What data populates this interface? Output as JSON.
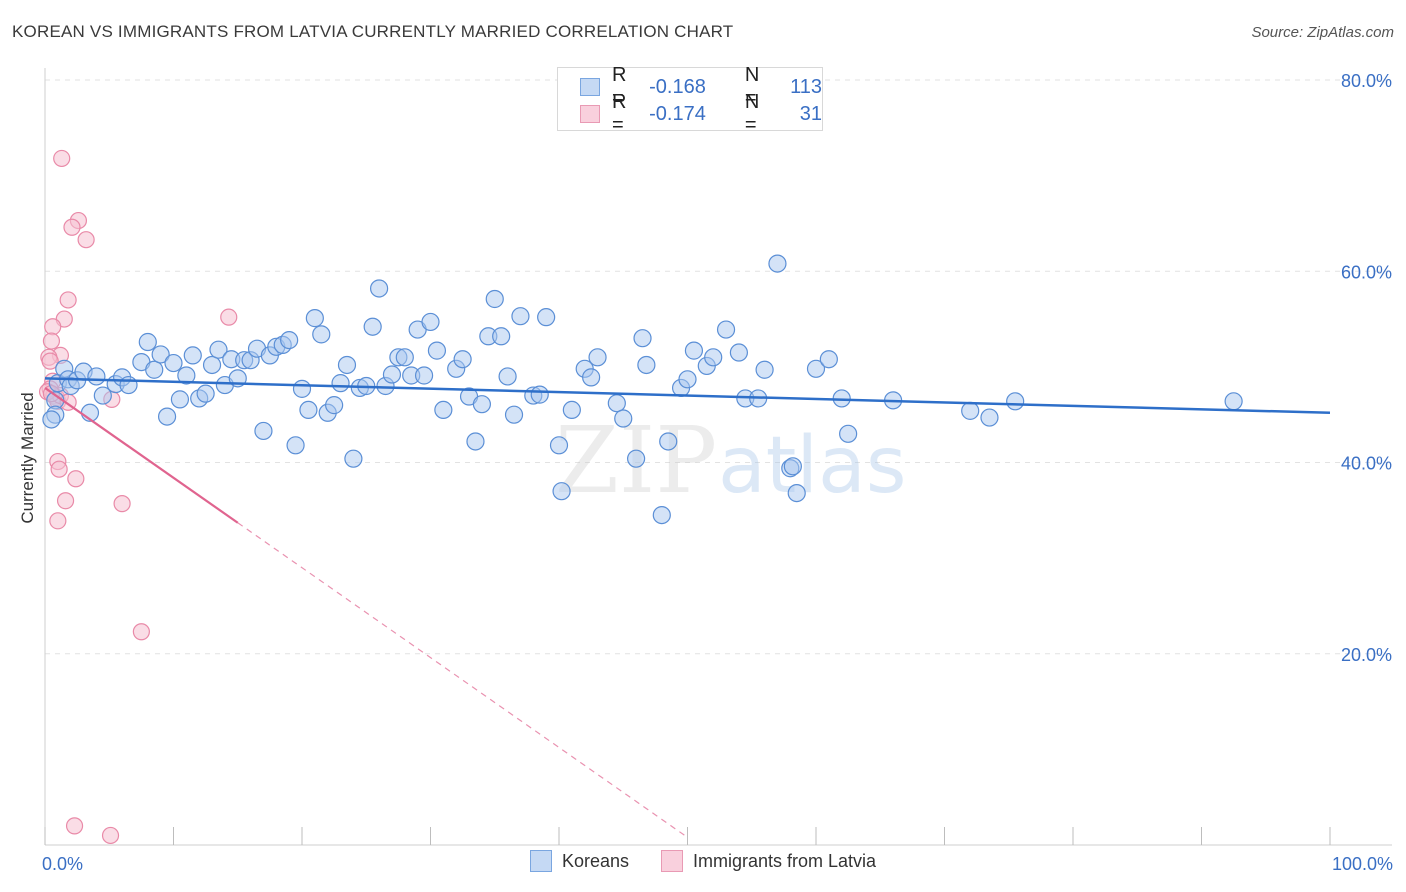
{
  "header": {
    "title": "KOREAN VS IMMIGRANTS FROM LATVIA CURRENTLY MARRIED CORRELATION CHART",
    "source": "Source: ZipAtlas.com"
  },
  "legend_top": {
    "rows": [
      {
        "r_label": "R =",
        "r_value": "-0.168",
        "n_label": "N =",
        "n_value": "113"
      },
      {
        "r_label": "R =",
        "r_value": "-0.174",
        "n_label": "N =",
        "n_value": "31"
      }
    ]
  },
  "legend_bottom": {
    "items": [
      "Koreans",
      "Immigrants from Latvia"
    ]
  },
  "watermark": {
    "zip": "ZIP",
    "atlas": "atlas"
  },
  "colors": {
    "blue_fill": "#aac8f0",
    "blue_stroke": "#5b8fd6",
    "blue_line": "#2e6fc9",
    "pink_fill": "#f6c1d1",
    "pink_stroke": "#e98aa8",
    "pink_line": "#e0648f",
    "tick_text": "#3a6fc4",
    "grid": "#e2e2e2"
  },
  "chart_data": {
    "type": "scatter",
    "title": "KOREAN VS IMMIGRANTS FROM LATVIA CURRENTLY MARRIED CORRELATION CHART",
    "xlabel": "",
    "ylabel": "Currently Married",
    "xlim": [
      0,
      100
    ],
    "ylim": [
      0,
      80
    ],
    "x_tick_labels": [
      "0.0%",
      "100.0%"
    ],
    "y_ticks": [
      20,
      40,
      60,
      80
    ],
    "y_tick_labels": [
      "20.0%",
      "40.0%",
      "60.0%",
      "80.0%"
    ],
    "grid": "dashed horizontal",
    "legend": "bottom-center",
    "series": [
      {
        "name": "Koreans",
        "color": "#5b8fd6",
        "trend": {
          "x": [
            0,
            100
          ],
          "y": [
            48.8,
            45.2
          ]
        },
        "points": [
          [
            0.8,
            46.5
          ],
          [
            0.8,
            45.0
          ],
          [
            1.0,
            48.3
          ],
          [
            1.5,
            49.8
          ],
          [
            1.8,
            48.7
          ],
          [
            2.0,
            48.0
          ],
          [
            2.5,
            48.6
          ],
          [
            3.0,
            49.5
          ],
          [
            3.5,
            45.2
          ],
          [
            4.0,
            49.0
          ],
          [
            4.5,
            47.0
          ],
          [
            5.5,
            48.2
          ],
          [
            6.0,
            48.9
          ],
          [
            6.5,
            48.1
          ],
          [
            7.5,
            50.5
          ],
          [
            8.0,
            52.6
          ],
          [
            8.5,
            49.7
          ],
          [
            9.0,
            51.3
          ],
          [
            9.5,
            44.8
          ],
          [
            10.0,
            50.4
          ],
          [
            10.5,
            46.6
          ],
          [
            11.0,
            49.1
          ],
          [
            11.5,
            51.2
          ],
          [
            12.0,
            46.7
          ],
          [
            12.5,
            47.2
          ],
          [
            13.0,
            50.2
          ],
          [
            13.5,
            51.8
          ],
          [
            14.0,
            48.1
          ],
          [
            14.5,
            50.8
          ],
          [
            15.0,
            48.8
          ],
          [
            15.5,
            50.7
          ],
          [
            16.0,
            50.7
          ],
          [
            16.5,
            51.9
          ],
          [
            17.0,
            43.3
          ],
          [
            17.5,
            51.2
          ],
          [
            18.0,
            52.1
          ],
          [
            18.5,
            52.3
          ],
          [
            19.0,
            52.8
          ],
          [
            19.5,
            41.8
          ],
          [
            20.0,
            47.7
          ],
          [
            20.5,
            45.5
          ],
          [
            21.0,
            55.1
          ],
          [
            21.5,
            53.4
          ],
          [
            22.0,
            45.2
          ],
          [
            22.5,
            46.0
          ],
          [
            23.0,
            48.3
          ],
          [
            23.5,
            50.2
          ],
          [
            24.0,
            40.4
          ],
          [
            24.5,
            47.8
          ],
          [
            25.0,
            48.0
          ],
          [
            25.5,
            54.2
          ],
          [
            26.0,
            58.2
          ],
          [
            26.5,
            48.0
          ],
          [
            27.0,
            49.2
          ],
          [
            27.5,
            51.0
          ],
          [
            28.0,
            51.0
          ],
          [
            28.5,
            49.1
          ],
          [
            29.0,
            53.9
          ],
          [
            29.5,
            49.1
          ],
          [
            30.0,
            54.7
          ],
          [
            30.5,
            51.7
          ],
          [
            31.0,
            45.5
          ],
          [
            32.0,
            49.8
          ],
          [
            32.5,
            50.8
          ],
          [
            33.0,
            46.9
          ],
          [
            33.5,
            42.2
          ],
          [
            34.0,
            46.1
          ],
          [
            34.5,
            53.2
          ],
          [
            35.0,
            57.1
          ],
          [
            35.5,
            53.2
          ],
          [
            36.0,
            49.0
          ],
          [
            36.5,
            45.0
          ],
          [
            37.0,
            55.3
          ],
          [
            38.0,
            47.0
          ],
          [
            38.5,
            47.1
          ],
          [
            39.0,
            55.2
          ],
          [
            40.0,
            41.8
          ],
          [
            40.2,
            37.0
          ],
          [
            41.0,
            45.5
          ],
          [
            42.0,
            49.8
          ],
          [
            42.5,
            48.9
          ],
          [
            43.0,
            51.0
          ],
          [
            44.5,
            46.2
          ],
          [
            45.0,
            44.6
          ],
          [
            46.0,
            40.4
          ],
          [
            46.5,
            53.0
          ],
          [
            46.8,
            50.2
          ],
          [
            48.0,
            34.5
          ],
          [
            48.5,
            42.2
          ],
          [
            49.5,
            47.8
          ],
          [
            50.0,
            48.7
          ],
          [
            50.5,
            51.7
          ],
          [
            51.5,
            50.1
          ],
          [
            52.0,
            51.0
          ],
          [
            53.0,
            53.9
          ],
          [
            54.0,
            51.5
          ],
          [
            54.5,
            46.7
          ],
          [
            55.5,
            46.7
          ],
          [
            56.0,
            49.7
          ],
          [
            57.0,
            60.8
          ],
          [
            58.0,
            39.4
          ],
          [
            58.2,
            39.6
          ],
          [
            58.5,
            36.8
          ],
          [
            60.0,
            49.8
          ],
          [
            61.0,
            50.8
          ],
          [
            62.0,
            46.7
          ],
          [
            62.5,
            43.0
          ],
          [
            66.0,
            46.5
          ],
          [
            72.0,
            45.4
          ],
          [
            73.5,
            44.7
          ],
          [
            75.5,
            46.4
          ],
          [
            92.5,
            46.4
          ],
          [
            0.5,
            44.5
          ]
        ]
      },
      {
        "name": "Immigrants from Latvia",
        "color": "#e98aa8",
        "trend_solid": {
          "x": [
            0,
            15
          ],
          "y": [
            47.8,
            33.7
          ]
        },
        "trend_dashed": {
          "x": [
            15,
            50
          ],
          "y": [
            33.7,
            0.8
          ]
        },
        "points": [
          [
            1.3,
            71.8
          ],
          [
            2.6,
            65.3
          ],
          [
            2.1,
            64.6
          ],
          [
            3.2,
            63.3
          ],
          [
            1.8,
            57.0
          ],
          [
            1.5,
            55.0
          ],
          [
            0.6,
            54.2
          ],
          [
            0.5,
            52.7
          ],
          [
            1.2,
            51.2
          ],
          [
            0.3,
            51.0
          ],
          [
            0.4,
            50.6
          ],
          [
            0.6,
            48.5
          ],
          [
            0.4,
            47.7
          ],
          [
            0.7,
            47.0
          ],
          [
            0.9,
            46.8
          ],
          [
            1.0,
            46.4
          ],
          [
            1.2,
            47.0
          ],
          [
            1.8,
            46.3
          ],
          [
            5.2,
            46.6
          ],
          [
            14.3,
            55.2
          ],
          [
            1.0,
            40.1
          ],
          [
            1.1,
            39.3
          ],
          [
            2.4,
            38.3
          ],
          [
            1.6,
            36.0
          ],
          [
            6.0,
            35.7
          ],
          [
            1.0,
            33.9
          ],
          [
            7.5,
            22.3
          ],
          [
            2.3,
            2.0
          ],
          [
            5.1,
            1.0
          ],
          [
            0.2,
            47.4
          ],
          [
            0.5,
            47.2
          ]
        ]
      }
    ]
  }
}
